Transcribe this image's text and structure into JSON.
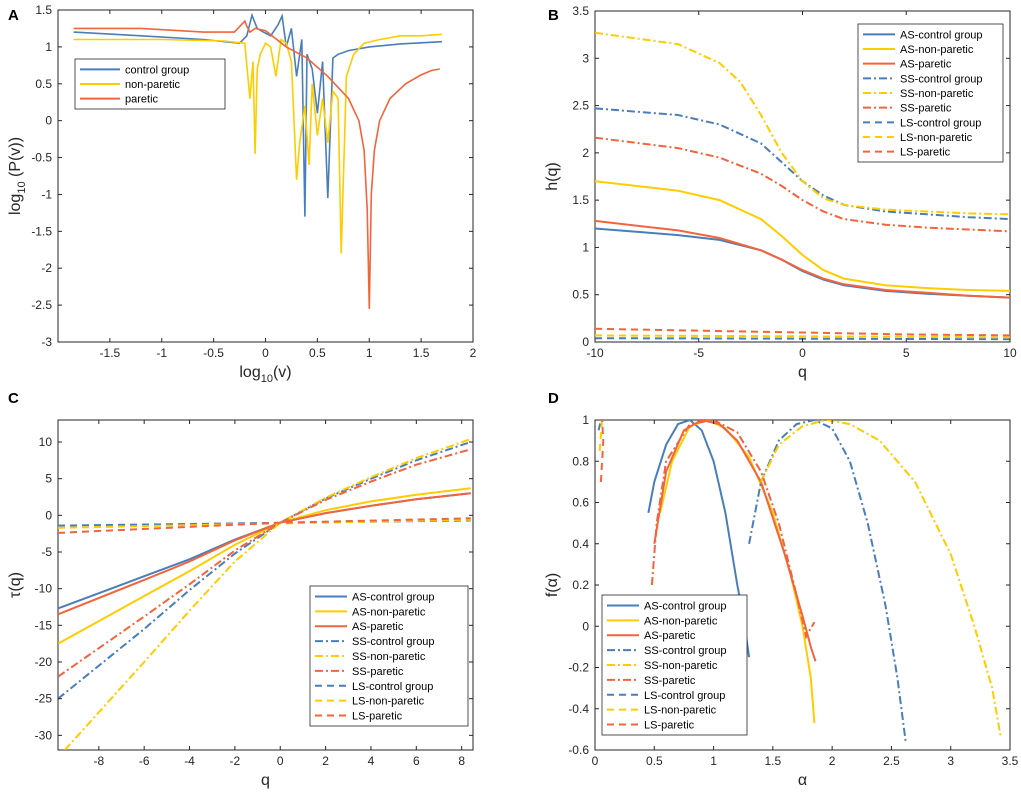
{
  "colors": {
    "control": "#4a7ebb",
    "nonparetic": "#ffcc00",
    "paretic": "#f2643c"
  },
  "chart_data": [
    {
      "panel": "A",
      "type": "line",
      "xlabel_base": "log",
      "xlabel_sub": "10",
      "xlabel_rest": "(v)",
      "ylabel_base": "log",
      "ylabel_sub": "10",
      "ylabel_rest": " (P(v))",
      "xlim": [
        -2,
        2
      ],
      "ylim": [
        -3,
        1.5
      ],
      "xticks": [
        "-1.5",
        "-1",
        "-0.5",
        "0",
        "0.5",
        "1",
        "1.5",
        "2"
      ],
      "yticks": [
        "-3",
        "-2.5",
        "-2",
        "-1.5",
        "-1",
        "-0.5",
        "0",
        "0.5",
        "1",
        "1.5"
      ],
      "legend": [
        "control group",
        "non-paretic",
        "paretic"
      ],
      "series": [
        {
          "name": "control group",
          "x": [
            -1.85,
            -1.2,
            -0.6,
            -0.25,
            -0.18,
            -0.13,
            -0.08,
            -0.02,
            0.05,
            0.12,
            0.16,
            0.2,
            0.25,
            0.3,
            0.35,
            0.38,
            0.4,
            0.45,
            0.5,
            0.55,
            0.6,
            0.65,
            0.7,
            0.8,
            1.0,
            1.3,
            1.7
          ],
          "y": [
            1.2,
            1.15,
            1.1,
            1.05,
            1.15,
            1.43,
            1.25,
            1.2,
            1.15,
            1.3,
            1.42,
            1.0,
            1.25,
            0.6,
            1.1,
            -1.3,
            0.9,
            0.7,
            0.1,
            0.8,
            -1.05,
            0.85,
            0.9,
            0.95,
            1.0,
            1.04,
            1.07
          ]
        },
        {
          "name": "non-paretic",
          "x": [
            -1.85,
            -1.0,
            -0.4,
            -0.2,
            -0.15,
            -0.12,
            -0.1,
            -0.08,
            -0.05,
            0.0,
            0.05,
            0.1,
            0.15,
            0.2,
            0.25,
            0.3,
            0.33,
            0.38,
            0.42,
            0.45,
            0.5,
            0.55,
            0.6,
            0.65,
            0.7,
            0.73,
            0.78,
            0.85,
            0.95,
            1.1,
            1.3,
            1.5,
            1.7
          ],
          "y": [
            1.1,
            1.1,
            1.08,
            1.05,
            0.3,
            0.8,
            -0.45,
            0.7,
            0.9,
            1.05,
            1.0,
            0.6,
            1.1,
            1.05,
            0.8,
            -0.8,
            -0.3,
            0.2,
            -0.6,
            0.5,
            -0.2,
            0.3,
            -0.3,
            0.4,
            0.3,
            -1.8,
            0.6,
            0.9,
            1.05,
            1.1,
            1.15,
            1.15,
            1.17
          ]
        },
        {
          "name": "paretic",
          "x": [
            -1.85,
            -1.2,
            -0.6,
            -0.3,
            -0.2,
            -0.18,
            -0.15,
            -0.1,
            0.0,
            0.2,
            0.4,
            0.6,
            0.8,
            0.9,
            0.95,
            0.98,
            1.0,
            1.02,
            1.05,
            1.1,
            1.2,
            1.35,
            1.5,
            1.6,
            1.68
          ],
          "y": [
            1.25,
            1.25,
            1.2,
            1.2,
            1.35,
            1.28,
            1.2,
            1.25,
            1.22,
            1.0,
            0.85,
            0.6,
            0.3,
            0.0,
            -0.4,
            -1.2,
            -2.55,
            -1.0,
            -0.4,
            0.0,
            0.3,
            0.5,
            0.62,
            0.68,
            0.7
          ]
        }
      ]
    },
    {
      "panel": "B",
      "type": "line",
      "xlabel": "q",
      "ylabel": "h(q)",
      "xlim": [
        -10,
        10
      ],
      "ylim": [
        0,
        3.5
      ],
      "xticks": [
        "-10",
        "-5",
        "0",
        "5",
        "10"
      ],
      "yticks": [
        "0",
        "0.5",
        "1",
        "1.5",
        "2",
        "2.5",
        "3",
        "3.5"
      ],
      "legend": [
        "AS-control group",
        "AS-non-paretic",
        "AS-paretic",
        "SS-control group",
        "SS-non-paretic",
        "SS-paretic",
        "LS-control group",
        "LS-non-paretic",
        "LS-paretic"
      ],
      "series": [
        {
          "name": "AS-control group",
          "style": "solid",
          "color": "control",
          "x": [
            -10,
            -6,
            -4,
            -2,
            -1,
            0,
            1,
            2,
            4,
            6,
            8,
            10
          ],
          "y": [
            1.2,
            1.13,
            1.08,
            0.97,
            0.87,
            0.75,
            0.66,
            0.6,
            0.54,
            0.51,
            0.49,
            0.47
          ]
        },
        {
          "name": "AS-non-paretic",
          "style": "solid",
          "color": "nonparetic",
          "x": [
            -10,
            -6,
            -4,
            -2,
            -1,
            0,
            1,
            2,
            4,
            6,
            8,
            10
          ],
          "y": [
            1.7,
            1.6,
            1.5,
            1.3,
            1.12,
            0.92,
            0.76,
            0.67,
            0.6,
            0.57,
            0.55,
            0.54
          ]
        },
        {
          "name": "AS-paretic",
          "style": "solid",
          "color": "paretic",
          "x": [
            -10,
            -6,
            -4,
            -2,
            -1,
            0,
            1,
            2,
            4,
            6,
            8,
            10
          ],
          "y": [
            1.28,
            1.18,
            1.1,
            0.97,
            0.87,
            0.76,
            0.67,
            0.61,
            0.55,
            0.52,
            0.49,
            0.47
          ]
        },
        {
          "name": "SS-control group",
          "style": "dashdot",
          "color": "control",
          "x": [
            -10,
            -6,
            -4,
            -2,
            -1,
            0,
            1,
            2,
            4,
            6,
            8,
            10
          ],
          "y": [
            2.47,
            2.4,
            2.3,
            2.1,
            1.9,
            1.7,
            1.55,
            1.45,
            1.38,
            1.35,
            1.32,
            1.3
          ]
        },
        {
          "name": "SS-non-paretic",
          "style": "dashdot",
          "color": "nonparetic",
          "x": [
            -10,
            -6,
            -4,
            -3,
            -2,
            -1,
            0,
            1,
            2,
            4,
            6,
            8,
            10
          ],
          "y": [
            3.27,
            3.15,
            2.95,
            2.75,
            2.4,
            2.0,
            1.7,
            1.52,
            1.45,
            1.4,
            1.38,
            1.36,
            1.35
          ]
        },
        {
          "name": "SS-paretic",
          "style": "dashdot",
          "color": "paretic",
          "x": [
            -10,
            -6,
            -4,
            -2,
            -1,
            0,
            1,
            2,
            4,
            6,
            8,
            10
          ],
          "y": [
            2.16,
            2.05,
            1.95,
            1.78,
            1.65,
            1.5,
            1.38,
            1.3,
            1.24,
            1.21,
            1.19,
            1.17
          ]
        },
        {
          "name": "LS-control group",
          "style": "dashed",
          "color": "control",
          "x": [
            -10,
            10
          ],
          "y": [
            0.04,
            0.03
          ]
        },
        {
          "name": "LS-non-paretic",
          "style": "dashed",
          "color": "nonparetic",
          "x": [
            -10,
            10
          ],
          "y": [
            0.07,
            0.05
          ]
        },
        {
          "name": "LS-paretic",
          "style": "dashed",
          "color": "paretic",
          "x": [
            -10,
            -5,
            0,
            5,
            10
          ],
          "y": [
            0.14,
            0.12,
            0.1,
            0.08,
            0.07
          ]
        }
      ]
    },
    {
      "panel": "C",
      "type": "line",
      "xlabel": "q",
      "ylabel": "τ(q)",
      "xlim": [
        -9.8,
        8.5
      ],
      "ylim": [
        -32,
        13
      ],
      "xticks": [
        "-8",
        "-6",
        "-4",
        "-2",
        "0",
        "2",
        "4",
        "6",
        "8"
      ],
      "yticks": [
        "-30",
        "-25",
        "-20",
        "-15",
        "-10",
        "-5",
        "0",
        "5",
        "10"
      ],
      "legend": [
        "AS-control group",
        "AS-non-paretic",
        "AS-paretic",
        "SS-control group",
        "SS-non-paretic",
        "SS-paretic",
        "LS-control group",
        "LS-non-paretic",
        "LS-paretic"
      ],
      "series": [
        {
          "name": "AS-control group",
          "style": "solid",
          "color": "control",
          "x": [
            -9.8,
            -6,
            -4,
            -2,
            0,
            2,
            4,
            6,
            8.4
          ],
          "y": [
            -12.7,
            -8.3,
            -6.0,
            -3.3,
            -1.0,
            0.3,
            1.3,
            2.2,
            3.0
          ]
        },
        {
          "name": "AS-non-paretic",
          "style": "solid",
          "color": "nonparetic",
          "x": [
            -9.8,
            -6,
            -4,
            -2,
            0,
            2,
            4,
            6,
            8.4
          ],
          "y": [
            -17.5,
            -11.0,
            -7.6,
            -4.0,
            -1.0,
            0.7,
            1.9,
            2.8,
            3.7
          ]
        },
        {
          "name": "AS-paretic",
          "style": "solid",
          "color": "paretic",
          "x": [
            -9.8,
            -6,
            -4,
            -2,
            0,
            2,
            4,
            6,
            8.4
          ],
          "y": [
            -13.5,
            -8.8,
            -6.3,
            -3.4,
            -1.0,
            0.3,
            1.3,
            2.2,
            3.0
          ]
        },
        {
          "name": "SS-control group",
          "style": "dashdot",
          "color": "control",
          "x": [
            -9.8,
            -6,
            -4,
            -2,
            0,
            2,
            4,
            6,
            8.4
          ],
          "y": [
            -25.0,
            -15.5,
            -10.2,
            -5.2,
            -1.0,
            2.3,
            5.0,
            7.5,
            10.0
          ]
        },
        {
          "name": "SS-non-paretic",
          "style": "dashdot",
          "color": "nonparetic",
          "x": [
            -9.5,
            -6,
            -4,
            -2,
            0,
            2,
            4,
            6,
            8.4
          ],
          "y": [
            -32.0,
            -20.0,
            -13.0,
            -6.3,
            -1.0,
            2.4,
            5.2,
            7.8,
            10.4
          ]
        },
        {
          "name": "SS-paretic",
          "style": "dashdot",
          "color": "paretic",
          "x": [
            -9.8,
            -6,
            -4,
            -2,
            0,
            2,
            4,
            6,
            8.4
          ],
          "y": [
            -22.0,
            -13.8,
            -9.4,
            -4.8,
            -1.0,
            2.1,
            4.6,
            6.9,
            9.0
          ]
        },
        {
          "name": "LS-control group",
          "style": "dashed",
          "color": "control",
          "x": [
            -9.8,
            8.4
          ],
          "y": [
            -1.4,
            -0.7
          ]
        },
        {
          "name": "LS-non-paretic",
          "style": "dashed",
          "color": "nonparetic",
          "x": [
            -9.8,
            8.4
          ],
          "y": [
            -1.7,
            -0.6
          ]
        },
        {
          "name": "LS-paretic",
          "style": "dashed",
          "color": "paretic",
          "x": [
            -9.8,
            0,
            8.4
          ],
          "y": [
            -2.4,
            -1.0,
            -0.4
          ]
        }
      ]
    },
    {
      "panel": "D",
      "type": "line",
      "xlabel": "α",
      "ylabel": "f(α)",
      "xlim": [
        0,
        3.5
      ],
      "ylim": [
        -0.6,
        1
      ],
      "xticks": [
        "0",
        "0.5",
        "1",
        "1.5",
        "2",
        "2.5",
        "3",
        "3.5"
      ],
      "yticks": [
        "-0.6",
        "-0.4",
        "-0.2",
        "0",
        "0.2",
        "0.4",
        "0.6",
        "0.8",
        "1"
      ],
      "legend": [
        "AS-control group",
        "AS-non-paretic",
        "AS-paretic",
        "SS-control group",
        "SS-non-paretic",
        "SS-paretic",
        "LS-control group",
        "LS-non-paretic",
        "LS-paretic"
      ],
      "series": [
        {
          "name": "AS-control group",
          "style": "solid",
          "color": "control",
          "x": [
            0.45,
            0.5,
            0.6,
            0.7,
            0.8,
            0.9,
            1.0,
            1.1,
            1.2,
            1.25,
            1.3
          ],
          "y": [
            0.55,
            0.7,
            0.88,
            0.98,
            1.0,
            0.95,
            0.8,
            0.55,
            0.2,
            0.05,
            -0.15
          ]
        },
        {
          "name": "AS-non-paretic",
          "style": "solid",
          "color": "nonparetic",
          "x": [
            0.55,
            0.65,
            0.8,
            0.95,
            1.1,
            1.3,
            1.5,
            1.65,
            1.75,
            1.82,
            1.85
          ],
          "y": [
            0.55,
            0.8,
            0.97,
            1.0,
            0.96,
            0.82,
            0.55,
            0.25,
            0.0,
            -0.25,
            -0.47
          ]
        },
        {
          "name": "AS-paretic",
          "style": "solid",
          "color": "paretic",
          "x": [
            0.5,
            0.6,
            0.75,
            0.9,
            1.05,
            1.2,
            1.4,
            1.6,
            1.75,
            1.82,
            1.86
          ],
          "y": [
            0.4,
            0.75,
            0.95,
            1.0,
            0.98,
            0.9,
            0.7,
            0.35,
            0.05,
            -0.1,
            -0.17
          ]
        },
        {
          "name": "SS-control group",
          "style": "dashdot",
          "color": "control",
          "x": [
            1.3,
            1.4,
            1.55,
            1.7,
            1.85,
            2.0,
            2.15,
            2.3,
            2.45,
            2.55,
            2.62
          ],
          "y": [
            0.4,
            0.7,
            0.9,
            0.98,
            1.0,
            0.96,
            0.8,
            0.5,
            0.1,
            -0.25,
            -0.56
          ]
        },
        {
          "name": "SS-non-paretic",
          "style": "dashdot",
          "color": "nonparetic",
          "x": [
            1.4,
            1.55,
            1.75,
            1.95,
            2.15,
            2.4,
            2.7,
            3.0,
            3.2,
            3.35,
            3.42
          ],
          "y": [
            0.7,
            0.88,
            0.97,
            1.0,
            0.98,
            0.9,
            0.7,
            0.35,
            0.0,
            -0.3,
            -0.53
          ]
        },
        {
          "name": "SS-paretic",
          "style": "dashdot",
          "color": "paretic",
          "x": [
            0.48,
            0.52,
            0.6,
            0.8,
            1.0,
            1.2,
            1.4,
            1.55,
            1.7,
            1.78,
            1.85
          ],
          "y": [
            0.2,
            0.5,
            0.8,
            0.98,
            1.0,
            0.94,
            0.75,
            0.5,
            0.15,
            -0.05,
            0.02
          ]
        },
        {
          "name": "LS-control group",
          "style": "dashed",
          "color": "control",
          "x": [
            0.03,
            0.05
          ],
          "y": [
            0.95,
            1.0
          ]
        },
        {
          "name": "LS-non-paretic",
          "style": "dashed",
          "color": "nonparetic",
          "x": [
            0.04,
            0.06
          ],
          "y": [
            0.85,
            1.0
          ]
        },
        {
          "name": "LS-paretic",
          "style": "dashed",
          "color": "paretic",
          "x": [
            0.05,
            0.07,
            0.06
          ],
          "y": [
            0.7,
            0.9,
            1.0
          ]
        }
      ]
    }
  ]
}
